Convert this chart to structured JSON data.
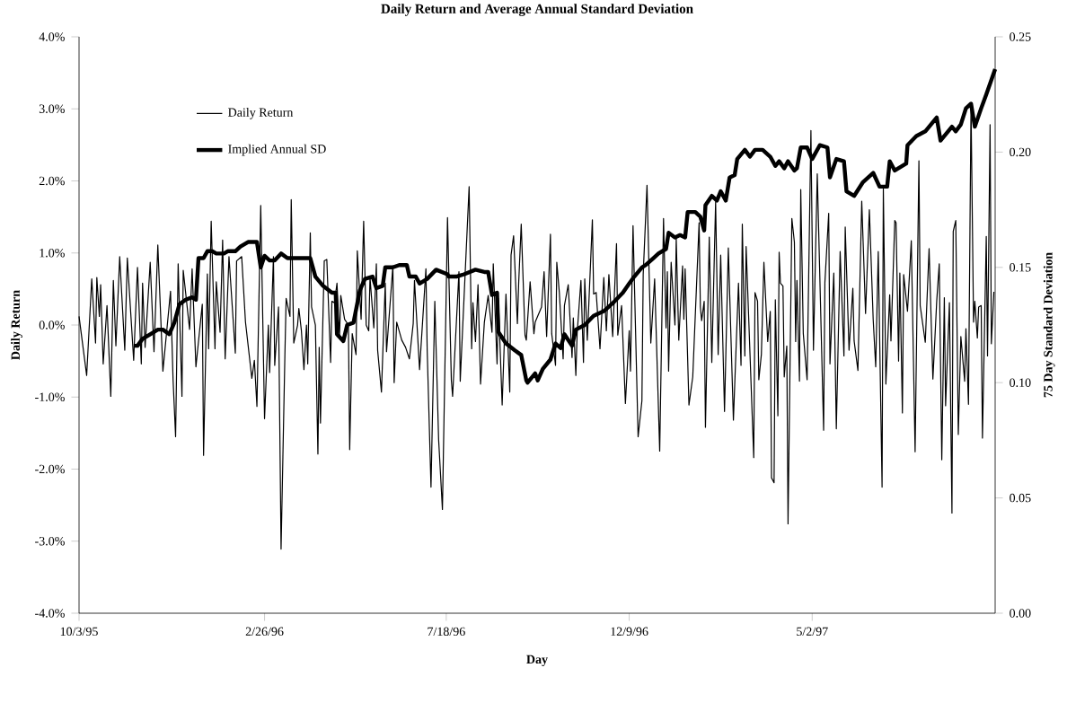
{
  "chart_data": {
    "type": "line",
    "title": "Daily Return and Average Annual Standard Deviation",
    "xlabel": "Day",
    "ylabel": "Daily Return",
    "y2label": "75 Day Standard Deviation",
    "xlim": [
      "1995-10-03",
      "1997-09-23"
    ],
    "xticks": [
      {
        "value": "1995-10-03",
        "label": "10/3/95"
      },
      {
        "value": "1996-02-26",
        "label": "2/26/96"
      },
      {
        "value": "1996-07-18",
        "label": "7/18/96"
      },
      {
        "value": "1996-12-09",
        "label": "12/9/96"
      },
      {
        "value": "1997-05-02",
        "label": "5/2/97"
      }
    ],
    "ylim": [
      -4,
      4
    ],
    "yticks": [
      {
        "value": -4,
        "label": "-4.0%"
      },
      {
        "value": -3,
        "label": "-3.0%"
      },
      {
        "value": -2,
        "label": "-2.0%"
      },
      {
        "value": -1,
        "label": "-1.0%"
      },
      {
        "value": 0,
        "label": "0.0%"
      },
      {
        "value": 1,
        "label": "1.0%"
      },
      {
        "value": 2,
        "label": "2.0%"
      },
      {
        "value": 3,
        "label": "3.0%"
      },
      {
        "value": 4,
        "label": "4.0%"
      }
    ],
    "y2lim": [
      0,
      0.25
    ],
    "y2ticks": [
      {
        "value": 0,
        "label": "0.00"
      },
      {
        "value": 0.05,
        "label": "0.05"
      },
      {
        "value": 0.1,
        "label": "0.10"
      },
      {
        "value": 0.15,
        "label": "0.15"
      },
      {
        "value": 0.2,
        "label": "0.20"
      },
      {
        "value": 0.25,
        "label": "0.25"
      }
    ],
    "legend": "top left",
    "marker": "none",
    "line_style": "solid",
    "series": [
      {
        "name": "Daily Return",
        "color": "#000000",
        "x": [
          "1995-10-03",
          "1995-10-09",
          "1995-10-13",
          "1995-10-16",
          "1995-10-17",
          "1995-10-19",
          "1995-10-20",
          "1995-10-22",
          "1995-10-25",
          "1995-10-28",
          "1995-10-30",
          "1995-11-01",
          "1995-11-04",
          "1995-11-08",
          "1995-11-10",
          "1995-11-15",
          "1995-11-18",
          "1995-11-21",
          "1995-11-22",
          "1995-11-24",
          "1995-11-28",
          "1995-12-01",
          "1995-12-04",
          "1995-12-08",
          "1995-12-14",
          "1995-12-16",
          "1995-12-18",
          "1995-12-20",
          "1995-12-23",
          "1995-12-24",
          "1995-12-29",
          "1995-12-31",
          "1996-01-03",
          "1996-01-08",
          "1996-01-09",
          "1996-01-12",
          "1996-01-13",
          "1996-01-15",
          "1996-01-18",
          "1996-01-19",
          "1996-01-22",
          "1996-01-24",
          "1996-01-26",
          "1996-01-29",
          "1996-02-03",
          "1996-02-04",
          "1996-02-08",
          "1996-02-11",
          "1996-02-16",
          "1996-02-18",
          "1996-02-20",
          "1996-02-23",
          "1996-02-26",
          "1996-02-29",
          "1996-03-01",
          "1996-03-04",
          "1996-03-05",
          "1996-03-08",
          "1996-03-10",
          "1996-03-13",
          "1996-03-14",
          "1996-03-17",
          "1996-03-18",
          "1996-03-20",
          "1996-03-23",
          "1996-03-24",
          "1996-03-26",
          "1996-03-28",
          "1996-03-30",
          "1996-03-31",
          "1996-04-02",
          "1996-04-03",
          "1996-04-06",
          "1996-04-08",
          "1996-04-09",
          "1996-04-10",
          "1996-04-13",
          "1996-04-15",
          "1996-04-18",
          "1996-04-19",
          "1996-04-21",
          "1996-04-23",
          "1996-04-25",
          "1996-04-26",
          "1996-04-29",
          "1996-05-02",
          "1996-05-03",
          "1996-05-05",
          "1996-05-08",
          "1996-05-09",
          "1996-05-12",
          "1996-05-14",
          "1996-05-16",
          "1996-05-18",
          "1996-05-19",
          "1996-05-22",
          "1996-05-24",
          "1996-05-25",
          "1996-05-28",
          "1996-05-31",
          "1996-06-01",
          "1996-06-06",
          "1996-06-07",
          "1996-06-09",
          "1996-06-13",
          "1996-06-16",
          "1996-06-19",
          "1996-06-22",
          "1996-06-23",
          "1996-06-27",
          "1996-07-02",
          "1996-07-03",
          "1996-07-06",
          "1996-07-09",
          "1996-07-12",
          "1996-07-15",
          "1996-07-19",
          "1996-07-22",
          "1996-07-23",
          "1996-07-28",
          "1996-07-29",
          "1996-08-05",
          "1996-08-07",
          "1996-08-08",
          "1996-08-10",
          "1996-08-12",
          "1996-08-14",
          "1996-08-17",
          "1996-08-20",
          "1996-08-23",
          "1996-08-24",
          "1996-08-27",
          "1996-08-28",
          "1996-08-31",
          "1996-09-03",
          "1996-09-06",
          "1996-09-07",
          "1996-09-09",
          "1996-09-12",
          "1996-09-13",
          "1996-09-15",
          "1996-09-18",
          "1996-09-19",
          "1996-09-22",
          "1996-09-25",
          "1996-09-26",
          "1996-10-01",
          "1996-10-03",
          "1996-10-05",
          "1996-10-08",
          "1996-10-09",
          "1996-10-12",
          "1996-10-13",
          "1996-10-15",
          "1996-10-18",
          "1996-10-19",
          "1996-10-22",
          "1996-10-25",
          "1996-10-26",
          "1996-10-28",
          "1996-10-29",
          "1996-11-01",
          "1996-11-03",
          "1996-11-04",
          "1996-11-06",
          "1996-11-10",
          "1996-11-11",
          "1996-11-13",
          "1996-11-16",
          "1996-11-19",
          "1996-11-21",
          "1996-11-23",
          "1996-11-26",
          "1996-11-29",
          "1996-11-30",
          "1996-12-03",
          "1996-12-06",
          "1996-12-09",
          "1996-12-10",
          "1996-12-12",
          "1996-12-16",
          "1996-12-19",
          "1996-12-20",
          "1996-12-23",
          "1996-12-26",
          "1996-12-29",
          "1997-01-02",
          "1997-01-05",
          "1997-01-07",
          "1997-01-08",
          "1997-01-09",
          "1997-01-11",
          "1997-01-14",
          "1997-01-15",
          "1997-01-17",
          "1997-01-20",
          "1997-01-21",
          "1997-01-22",
          "1997-01-25",
          "1997-01-28",
          "1997-02-02",
          "1997-02-03",
          "1997-02-04",
          "1997-02-06",
          "1997-02-07",
          "1997-02-10",
          "1997-02-12",
          "1997-02-15",
          "1997-02-17",
          "1997-02-19",
          "1997-02-22",
          "1997-02-25",
          "1997-03-01",
          "1997-03-05",
          "1997-03-07",
          "1997-03-08",
          "1997-03-10",
          "1997-03-11",
          "1997-03-17",
          "1997-03-18",
          "1997-03-20",
          "1997-03-21",
          "1997-03-23",
          "1997-03-25",
          "1997-03-28",
          "1997-03-30",
          "1997-03-31",
          "1997-04-02",
          "1997-04-03",
          "1997-04-05",
          "1997-04-06",
          "1997-04-07",
          "1997-04-09",
          "1997-04-10",
          "1997-04-12",
          "1997-04-13",
          "1997-04-16",
          "1997-04-18",
          "1997-04-19",
          "1997-04-20",
          "1997-04-22",
          "1997-04-23",
          "1997-04-25",
          "1997-04-28",
          "1997-05-01",
          "1997-05-03",
          "1997-05-06",
          "1997-05-11",
          "1997-05-12",
          "1997-05-15",
          "1997-05-16",
          "1997-05-19",
          "1997-05-21",
          "1997-05-24",
          "1997-05-27",
          "1997-05-28",
          "1997-05-31",
          "1997-06-03",
          "1997-06-04",
          "1997-06-07",
          "1997-06-10",
          "1997-06-13",
          "1997-06-16",
          "1997-06-19",
          "1997-06-21",
          "1997-06-23",
          "1997-06-26",
          "1997-06-27",
          "1997-06-29",
          "1997-07-02",
          "1997-07-03",
          "1997-07-06",
          "1997-07-07",
          "1997-07-09",
          "1997-07-10",
          "1997-07-12",
          "1997-07-13",
          "1997-07-16",
          "1997-07-19",
          "1997-07-22",
          "1997-07-25",
          "1997-07-26",
          "1997-07-30",
          "1997-08-02",
          "1997-08-05",
          "1997-08-08",
          "1997-08-10",
          "1997-08-12",
          "1997-08-14",
          "1997-08-15",
          "1997-08-18",
          "1997-08-20",
          "1997-08-21",
          "1997-08-23",
          "1997-08-25",
          "1997-08-27",
          "1997-08-30",
          "1997-08-31",
          "1997-09-02",
          "1997-09-04",
          "1997-09-06",
          "1997-09-07",
          "1997-09-09",
          "1997-09-10",
          "1997-09-12",
          "1997-09-13",
          "1997-09-16",
          "1997-09-17",
          "1997-09-19",
          "1997-09-20",
          "1997-09-22"
        ],
        "values": [
          0.12,
          -0.7,
          0.64,
          -0.25,
          0.66,
          0.12,
          0.56,
          -0.54,
          0.27,
          -0.99,
          0.62,
          -0.29,
          0.95,
          -0.35,
          0.93,
          -0.49,
          0.8,
          -0.54,
          0.58,
          -0.31,
          0.87,
          -0.37,
          1.11,
          -0.64,
          0.47,
          -0.76,
          -1.55,
          0.85,
          -0.99,
          0.76,
          -0.06,
          0.78,
          -0.58,
          0.29,
          -1.81,
          0.71,
          -0.33,
          1.44,
          -0.33,
          0.6,
          -0.1,
          1.18,
          -0.47,
          0.95,
          -0.39,
          0.89,
          0.95,
          0.04,
          -0.74,
          -0.49,
          -1.13,
          1.66,
          -1.3,
          0.0,
          -0.66,
          0.95,
          -0.56,
          0.25,
          -3.11,
          -0.43,
          0.37,
          0.12,
          1.74,
          -0.25,
          0.0,
          0.23,
          -0.08,
          -0.62,
          0.0,
          -0.54,
          1.28,
          0.25,
          0.0,
          -1.79,
          -0.31,
          -1.36,
          0.89,
          0.91,
          -0.52,
          0.33,
          0.31,
          0.58,
          -0.16,
          0.41,
          0.08,
          0.0,
          -1.73,
          -0.12,
          -0.41,
          1.03,
          0.08,
          1.44,
          0.0,
          -0.08,
          0.66,
          -0.04,
          0.85,
          -0.35,
          -0.93,
          0.58,
          -0.37,
          0.82,
          -0.8,
          0.04,
          -0.21,
          -0.31,
          -0.47,
          0.02,
          0.62,
          -0.62,
          0.78,
          -0.35,
          -2.25,
          0.33,
          -1.59,
          -2.56,
          1.49,
          -0.76,
          -0.99,
          0.74,
          -0.78,
          1.92,
          -0.33,
          0.31,
          -0.23,
          0.56,
          -0.82,
          0.04,
          0.41,
          -0.1,
          0.85,
          -0.54,
          0.37,
          -1.11,
          0.43,
          -0.93,
          0.97,
          1.24,
          0.02,
          0.58,
          1.4,
          -0.14,
          -0.21,
          0.6,
          -0.12,
          0.04,
          0.25,
          0.74,
          -0.16,
          1.26,
          -0.12,
          -0.56,
          0.87,
          0.45,
          -0.47,
          0.27,
          0.56,
          -0.45,
          0.1,
          -0.7,
          -0.12,
          0.62,
          -0.52,
          0.64,
          -0.21,
          1.46,
          0.43,
          0.45,
          -0.33,
          0.66,
          -0.08,
          0.7,
          -0.16,
          1.13,
          -0.14,
          0.27,
          -1.09,
          -0.08,
          -0.64,
          1.38,
          -1.55,
          -1.05,
          0.7,
          1.94,
          -0.25,
          0.64,
          -1.75,
          1.48,
          -0.04,
          0.74,
          -0.64,
          0.87,
          0.0,
          1.2,
          -0.21,
          0.82,
          0.08,
          0.78,
          -1.11,
          -0.72,
          1.42,
          0.25,
          0.06,
          0.33,
          -1.42,
          1.22,
          -0.52,
          1.71,
          -0.41,
          0.97,
          -1.2,
          1.07,
          -1.32,
          0.58,
          -0.56,
          1.4,
          -0.43,
          1.09,
          -1.84,
          0.45,
          0.33,
          -0.76,
          -0.41,
          0.87,
          -0.23,
          0.19,
          -2.12,
          -2.19,
          0.35,
          -1.26,
          1.01,
          0.58,
          0.54,
          -0.72,
          -0.29,
          -2.76,
          1.48,
          1.15,
          -0.23,
          0.62,
          -0.78,
          1.88,
          -0.12,
          -0.76,
          2.7,
          -0.35,
          2.1,
          -1.46,
          0.59,
          1.55,
          -0.54,
          0.72,
          -1.44,
          1.02,
          -0.43,
          1.36,
          -0.35,
          0.51,
          -0.22,
          -0.63,
          1.72,
          0.16,
          1.6,
          0.08,
          -0.58,
          1.02,
          -2.25,
          1.89,
          -0.82,
          0.42,
          -0.22,
          1.45,
          1.42,
          -0.5,
          0.72,
          -1.22,
          0.7,
          0.19,
          1.17,
          -1.76,
          2.28,
          0.27,
          -0.24,
          1.06,
          -0.75,
          0.33,
          0.85,
          -1.87,
          0.38,
          -1.12,
          0.31,
          -2.61,
          1.3,
          1.45,
          -1.52,
          -0.16,
          -0.78,
          -0.05,
          -1.1,
          3.04,
          0.04,
          0.33,
          -0.18,
          0.25,
          0.27,
          -1.57,
          1.23,
          -0.43,
          2.78,
          -0.26,
          0.46
        ]
      },
      {
        "name": "Implied Annual SD",
        "color": "#000000",
        "axis": "y2",
        "x": [
          "1995-11-15",
          "1995-11-18",
          "1995-11-22",
          "1995-11-28",
          "1995-12-04",
          "1995-12-08",
          "1995-12-13",
          "1995-12-17",
          "1995-12-21",
          "1995-12-26",
          "1995-12-31",
          "1996-01-03",
          "1996-01-05",
          "1996-01-09",
          "1996-01-12",
          "1996-01-16",
          "1996-01-19",
          "1996-01-25",
          "1996-01-28",
          "1996-02-03",
          "1996-02-07",
          "1996-02-13",
          "1996-02-20",
          "1996-02-23",
          "1996-02-26",
          "1996-03-01",
          "1996-03-05",
          "1996-03-10",
          "1996-03-15",
          "1996-03-24",
          "1996-04-02",
          "1996-04-06",
          "1996-04-12",
          "1996-04-19",
          "1996-04-22",
          "1996-04-23",
          "1996-04-28",
          "1996-05-01",
          "1996-05-06",
          "1996-05-11",
          "1996-05-15",
          "1996-05-21",
          "1996-05-24",
          "1996-05-29",
          "1996-05-31",
          "1996-06-06",
          "1996-06-11",
          "1996-06-17",
          "1996-06-19",
          "1996-06-24",
          "1996-06-27",
          "1996-07-03",
          "1996-07-10",
          "1996-07-19",
          "1996-07-20",
          "1996-07-26",
          "1996-08-01",
          "1996-08-10",
          "1996-08-17",
          "1996-08-20",
          "1996-08-23",
          "1996-08-27",
          "1996-08-28",
          "1996-09-03",
          "1996-09-10",
          "1996-09-15",
          "1996-09-19",
          "1996-09-20",
          "1996-09-26",
          "1996-09-28",
          "1996-10-02",
          "1996-10-08",
          "1996-10-12",
          "1996-10-16",
          "1996-10-19",
          "1996-10-25",
          "1996-10-28",
          "1996-11-04",
          "1996-11-11",
          "1996-11-19",
          "1996-11-27",
          "1996-12-04",
          "1996-12-09",
          "1996-12-13",
          "1996-12-19",
          "1996-12-22",
          "1996-12-28",
          "1997-01-01",
          "1997-01-07",
          "1997-01-09",
          "1997-01-14",
          "1997-01-18",
          "1997-01-22",
          "1997-01-24",
          "1997-01-30",
          "1997-02-03",
          "1997-02-06",
          "1997-02-07",
          "1997-02-12",
          "1997-02-16",
          "1997-02-19",
          "1997-02-23",
          "1997-02-26",
          "1997-03-02",
          "1997-03-04",
          "1997-03-10",
          "1997-03-14",
          "1997-03-18",
          "1997-03-24",
          "1997-03-30",
          "1997-04-03",
          "1997-04-06",
          "1997-04-10",
          "1997-04-13",
          "1997-04-18",
          "1997-04-20",
          "1997-04-23",
          "1997-04-28",
          "1997-05-02",
          "1997-05-08",
          "1997-05-14",
          "1997-05-16",
          "1997-05-21",
          "1997-05-27",
          "1997-05-29",
          "1997-06-04",
          "1997-06-11",
          "1997-06-19",
          "1997-06-24",
          "1997-06-30",
          "1997-07-02",
          "1997-07-06",
          "1997-07-15",
          "1997-07-16",
          "1997-07-23",
          "1997-07-30",
          "1997-08-08",
          "1997-08-11",
          "1997-08-20",
          "1997-08-23",
          "1997-08-27",
          "1997-08-31",
          "1997-09-04",
          "1997-09-07",
          "1997-09-12",
          "1997-09-16",
          "1997-09-23"
        ],
        "values": [
          0.116,
          0.116,
          0.119,
          0.121,
          0.123,
          0.123,
          0.121,
          0.126,
          0.134,
          0.136,
          0.137,
          0.136,
          0.154,
          0.154,
          0.157,
          0.157,
          0.156,
          0.156,
          0.157,
          0.157,
          0.159,
          0.161,
          0.161,
          0.15,
          0.155,
          0.153,
          0.153,
          0.156,
          0.154,
          0.154,
          0.154,
          0.146,
          0.142,
          0.139,
          0.139,
          0.121,
          0.118,
          0.125,
          0.126,
          0.14,
          0.145,
          0.146,
          0.141,
          0.142,
          0.15,
          0.15,
          0.151,
          0.151,
          0.146,
          0.146,
          0.143,
          0.145,
          0.149,
          0.147,
          0.146,
          0.146,
          0.147,
          0.149,
          0.148,
          0.148,
          0.138,
          0.139,
          0.122,
          0.117,
          0.114,
          0.112,
          0.101,
          0.1,
          0.104,
          0.101,
          0.106,
          0.11,
          0.117,
          0.115,
          0.121,
          0.116,
          0.123,
          0.125,
          0.129,
          0.131,
          0.135,
          0.139,
          0.143,
          0.146,
          0.15,
          0.151,
          0.154,
          0.156,
          0.158,
          0.165,
          0.163,
          0.164,
          0.163,
          0.174,
          0.174,
          0.172,
          0.166,
          0.177,
          0.181,
          0.179,
          0.183,
          0.179,
          0.189,
          0.19,
          0.197,
          0.201,
          0.198,
          0.201,
          0.201,
          0.198,
          0.194,
          0.196,
          0.193,
          0.196,
          0.192,
          0.193,
          0.202,
          0.202,
          0.197,
          0.203,
          0.202,
          0.189,
          0.197,
          0.196,
          0.183,
          0.181,
          0.187,
          0.191,
          0.185,
          0.185,
          0.196,
          0.192,
          0.195,
          0.203,
          0.207,
          0.209,
          0.215,
          0.205,
          0.211,
          0.209,
          0.212,
          0.219,
          0.221,
          0.211,
          0.219,
          0.225,
          0.236
        ]
      }
    ]
  }
}
